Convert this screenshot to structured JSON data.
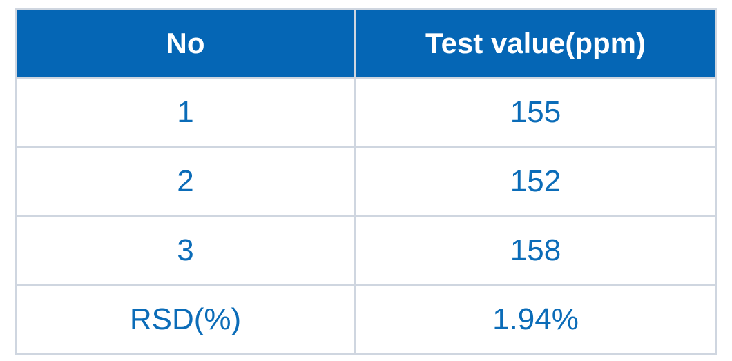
{
  "table": {
    "header": [
      "No",
      "Test value(ppm)"
    ],
    "rows": [
      [
        "1",
        "155"
      ],
      [
        "2",
        "152"
      ],
      [
        "3",
        "158"
      ],
      [
        "RSD(%)",
        "1.94%"
      ]
    ]
  }
}
